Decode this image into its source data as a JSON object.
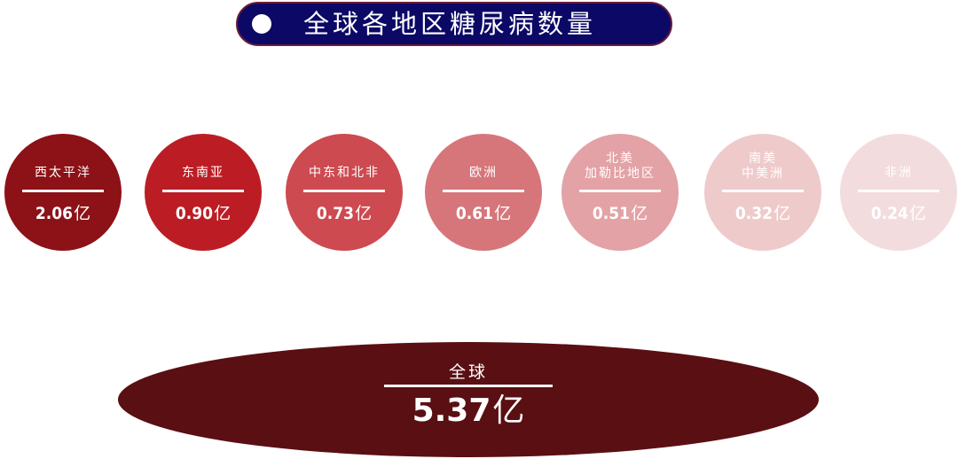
{
  "title": "全球各地区糖尿病数量",
  "chart_data": {
    "type": "bubble",
    "unit": "亿",
    "categories": [
      "西太平洋",
      "东南亚",
      "中东和北非",
      "欧洲",
      "北美\n加勒比地区",
      "南美\n中美洲",
      "非洲"
    ],
    "values": [
      2.06,
      0.9,
      0.73,
      0.61,
      0.51,
      0.32,
      0.24
    ],
    "value_labels": [
      "2.06",
      "0.90",
      "0.73",
      "0.61",
      "0.51",
      "0.32",
      "0.24"
    ],
    "colors": [
      "#8c1218",
      "#bc1d24",
      "#cd4a50",
      "#d6767a",
      "#e3a2a5",
      "#efcacb",
      "#f3dcdd"
    ],
    "total": {
      "label": "全球",
      "value": 5.37,
      "value_label": "5.37",
      "color": "#5a0f13"
    }
  }
}
